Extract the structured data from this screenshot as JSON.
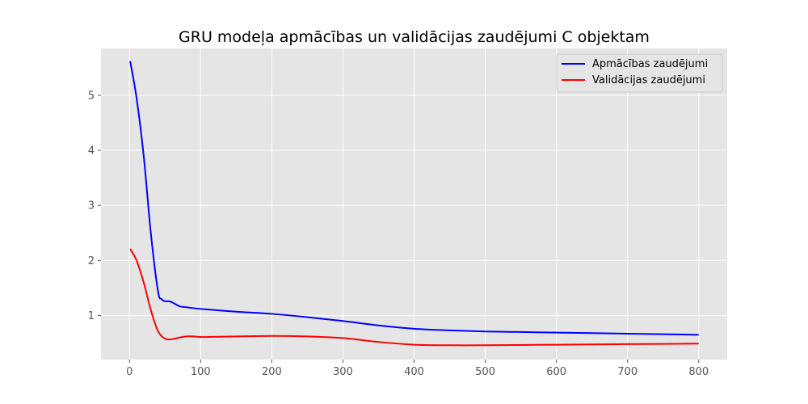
{
  "chart_data": {
    "type": "line",
    "title": "GRU modeļa apmācības un validācijas zaudējumi C objektam",
    "xlabel": "",
    "ylabel": "",
    "xlim": [
      -40,
      840
    ],
    "ylim": [
      0.2,
      5.85
    ],
    "xticks": [
      0,
      100,
      200,
      300,
      400,
      500,
      600,
      700,
      800
    ],
    "yticks": [
      1,
      2,
      3,
      4,
      5
    ],
    "grid": true,
    "legend_position": "top-right",
    "series": [
      {
        "name": "Apmācības zaudējumi",
        "color": "#0000ff",
        "x": [
          1,
          10,
          20,
          30,
          40,
          45,
          50,
          55,
          60,
          70,
          80,
          100,
          150,
          200,
          250,
          300,
          350,
          400,
          450,
          500,
          550,
          600,
          650,
          700,
          750,
          800
        ],
        "y": [
          5.62,
          4.95,
          3.9,
          2.5,
          1.45,
          1.3,
          1.26,
          1.26,
          1.24,
          1.17,
          1.15,
          1.12,
          1.07,
          1.03,
          0.97,
          0.9,
          0.82,
          0.76,
          0.73,
          0.71,
          0.7,
          0.69,
          0.68,
          0.67,
          0.66,
          0.65
        ]
      },
      {
        "name": "Validācijas zaudējumi",
        "color": "#ff0000",
        "x": [
          1,
          10,
          20,
          30,
          40,
          50,
          60,
          70,
          80,
          90,
          100,
          110,
          150,
          200,
          250,
          300,
          350,
          400,
          450,
          500,
          550,
          600,
          650,
          700,
          750,
          800
        ],
        "y": [
          2.21,
          2.0,
          1.6,
          1.1,
          0.72,
          0.58,
          0.57,
          0.6,
          0.62,
          0.62,
          0.61,
          0.61,
          0.62,
          0.63,
          0.62,
          0.59,
          0.52,
          0.47,
          0.46,
          0.46,
          0.465,
          0.47,
          0.475,
          0.48,
          0.485,
          0.49
        ]
      }
    ]
  }
}
